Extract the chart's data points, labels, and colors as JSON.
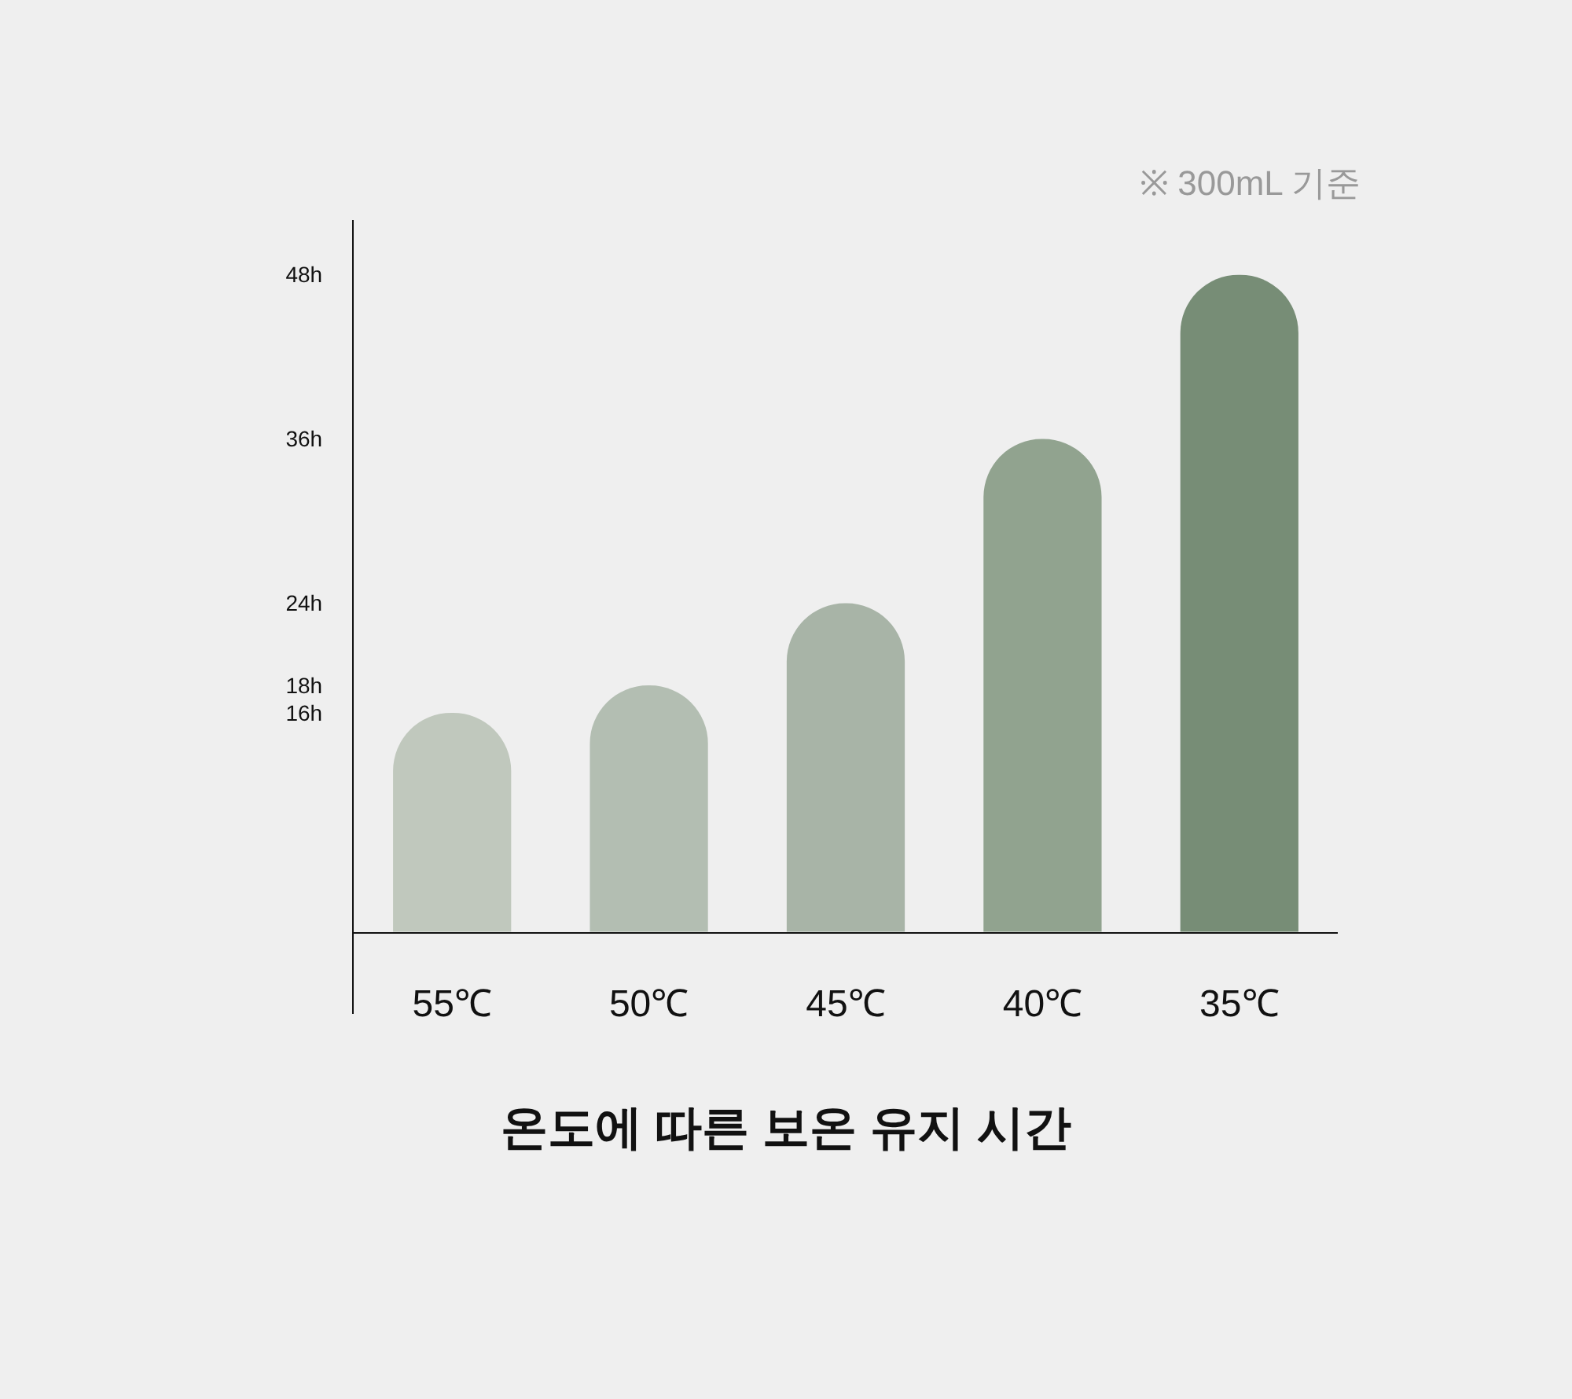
{
  "chart_data": {
    "type": "bar",
    "title": "온도에 따른 보온 유지 시간",
    "annotations": [
      "※ 300mL 기준"
    ],
    "categories": [
      "55℃",
      "50℃",
      "45℃",
      "40℃",
      "35℃"
    ],
    "values": [
      16,
      18,
      24,
      36,
      48
    ],
    "colors": [
      "#c0c8bd",
      "#b3beb2",
      "#a8b4a7",
      "#91a38f",
      "#778d76"
    ],
    "ylim": [
      -6,
      52
    ],
    "yticks": [
      {
        "value": 16,
        "label": "16h"
      },
      {
        "value": 18,
        "label": "18h"
      },
      {
        "value": 24,
        "label": "24h"
      },
      {
        "value": 36,
        "label": "36h"
      },
      {
        "value": 48,
        "label": "48h"
      }
    ]
  }
}
